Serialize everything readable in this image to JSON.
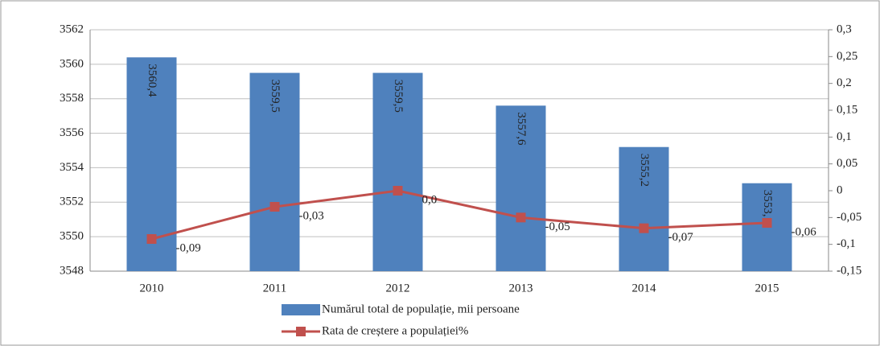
{
  "chart_data": {
    "type": "bar",
    "categories": [
      "2010",
      "2011",
      "2012",
      "2013",
      "2014",
      "2015"
    ],
    "series": [
      {
        "name": "Numărul total de populație, mii persoane",
        "color": "#4f81bd",
        "type": "bar",
        "values": [
          3560.4,
          3559.5,
          3559.5,
          3557.6,
          3555.2,
          3553.1
        ],
        "value_labels": [
          "3560,4",
          "3559,5",
          "3559,5",
          "3557,6",
          "3555,2",
          "3553,1"
        ]
      },
      {
        "name": "Rata de creștere a populației%",
        "color": "#c0504d",
        "type": "line",
        "axis": "y2",
        "values": [
          -0.09,
          -0.03,
          0.0,
          -0.05,
          -0.07,
          -0.06
        ],
        "value_labels": [
          "-0,09",
          "-0,03",
          "0,0",
          "-0,05",
          "-0,07",
          "-0,06"
        ]
      }
    ],
    "ylim": [
      3548,
      3562
    ],
    "yticks": [
      3548,
      3550,
      3552,
      3554,
      3556,
      3558,
      3560,
      3562
    ],
    "y2lim": [
      -0.15,
      0.3
    ],
    "y2ticks": [
      {
        "value": -0.15,
        "label": "-0,15"
      },
      {
        "value": -0.1,
        "label": "-0,1"
      },
      {
        "value": -0.05,
        "label": "-0,05"
      },
      0,
      {
        "value": 0.05,
        "label": "0,05"
      },
      {
        "value": 0.1,
        "label": "0,1"
      },
      {
        "value": 0.15,
        "label": "0,15"
      },
      {
        "value": 0.2,
        "label": "0,2"
      },
      {
        "value": 0.25,
        "label": "0,25"
      },
      {
        "value": 0.3,
        "label": "0,3"
      }
    ],
    "grid": true
  }
}
